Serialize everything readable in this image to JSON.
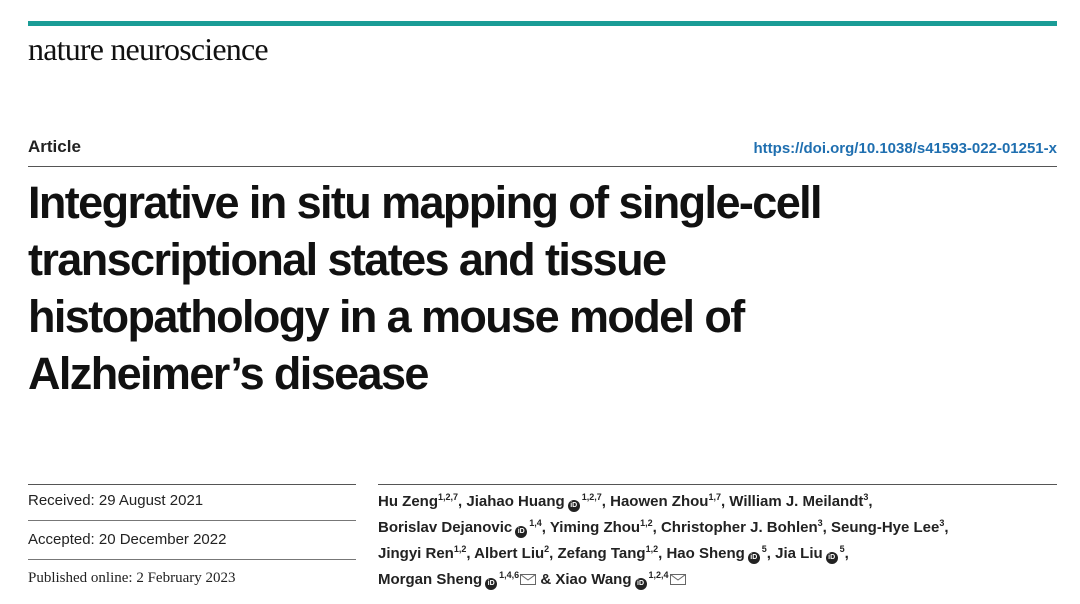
{
  "header": {
    "journal": "nature neuroscience",
    "accent_color": "#1a9c96"
  },
  "article": {
    "type": "Article",
    "doi": "https://doi.org/10.1038/s41593-022-01251-x",
    "title_lines": [
      "Integrative in situ mapping of single-cell",
      "transcriptional states and tissue",
      "histopathology in a mouse model of",
      "Alzheimer’s disease"
    ]
  },
  "dates": {
    "received": "Received: 29 August 2021",
    "accepted": "Accepted: 20 December 2022",
    "published": "Published online: 2 February 2023"
  },
  "authors": [
    {
      "name": "Hu Zeng",
      "aff": "1,2,7",
      "orcid": false,
      "sep": ", "
    },
    {
      "name": "Jiahao Huang",
      "aff": "1,2,7",
      "orcid": true,
      "sep": ", "
    },
    {
      "name": "Haowen Zhou",
      "aff": "1,7",
      "orcid": false,
      "sep": ", "
    },
    {
      "name": "William J. Meilandt",
      "aff": "3",
      "orcid": false,
      "sep": ", "
    },
    {
      "name": "Borislav Dejanovic",
      "aff": "1,4",
      "orcid": true,
      "sep": ", "
    },
    {
      "name": "Yiming Zhou",
      "aff": "1,2",
      "orcid": false,
      "sep": ", "
    },
    {
      "name": "Christopher J. Bohlen",
      "aff": "3",
      "orcid": false,
      "sep": ", "
    },
    {
      "name": "Seung-Hye Lee",
      "aff": "3",
      "orcid": false,
      "sep": ", "
    },
    {
      "name": "Jingyi Ren",
      "aff": "1,2",
      "orcid": false,
      "sep": ", "
    },
    {
      "name": "Albert Liu",
      "aff": "2",
      "orcid": false,
      "sep": ", "
    },
    {
      "name": "Zefang Tang",
      "aff": "1,2",
      "orcid": false,
      "sep": ", "
    },
    {
      "name": "Hao Sheng",
      "aff": "5",
      "orcid": true,
      "sep": ", "
    },
    {
      "name": "Jia Liu",
      "aff": "5",
      "orcid": true,
      "sep": ", "
    },
    {
      "name": "Morgan Sheng",
      "aff": "1,4,6",
      "orcid": true,
      "mail": true,
      "sep": " & "
    },
    {
      "name": "Xiao Wang",
      "aff": "1,2,4",
      "orcid": true,
      "mail": true,
      "sep": ""
    }
  ],
  "icons": {
    "orcid": "orcid-icon",
    "mail": "mail-icon"
  }
}
